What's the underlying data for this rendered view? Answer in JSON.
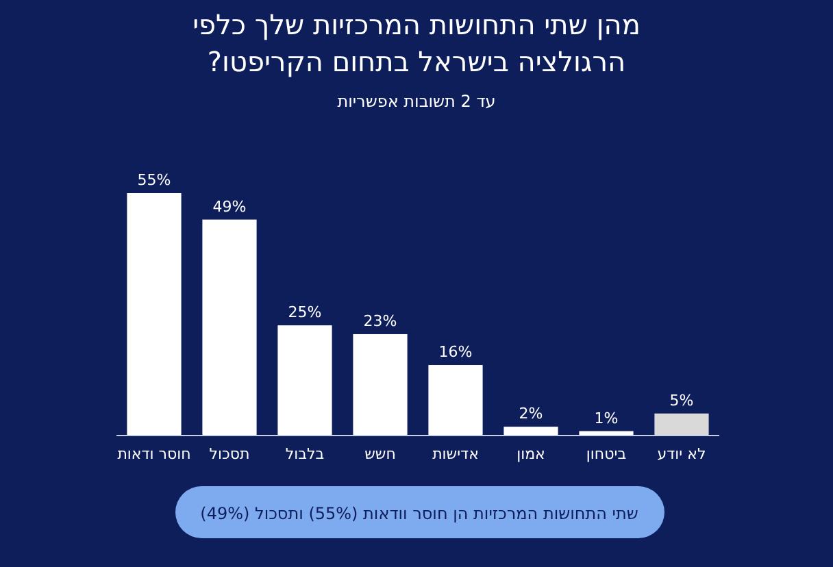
{
  "chart_data": {
    "type": "bar",
    "title": "מהן שתי התחושות המרכזיות שלך כלפי הרגולציה בישראל בתחום הקריפטו?",
    "subtitle": "עד 2 תשובות אפשריות",
    "categories": [
      "חוסר ודאות",
      "תסכול",
      "בלבול",
      "חשש",
      "אדישות",
      "אמון",
      "ביטחון",
      "לא יודע"
    ],
    "values": [
      55,
      49,
      25,
      23,
      16,
      2,
      1,
      5
    ],
    "value_labels": [
      "55%",
      "49%",
      "25%",
      "23%",
      "16%",
      "2%",
      "1%",
      "5%"
    ],
    "colors": [
      "#ffffff",
      "#ffffff",
      "#ffffff",
      "#ffffff",
      "#ffffff",
      "#ffffff",
      "#ffffff",
      "#d9d9d9"
    ],
    "annotations": [
      "שתי התחושות המרכזיות הן חוסר וודאות (55%) ותסכול (49%)"
    ]
  }
}
